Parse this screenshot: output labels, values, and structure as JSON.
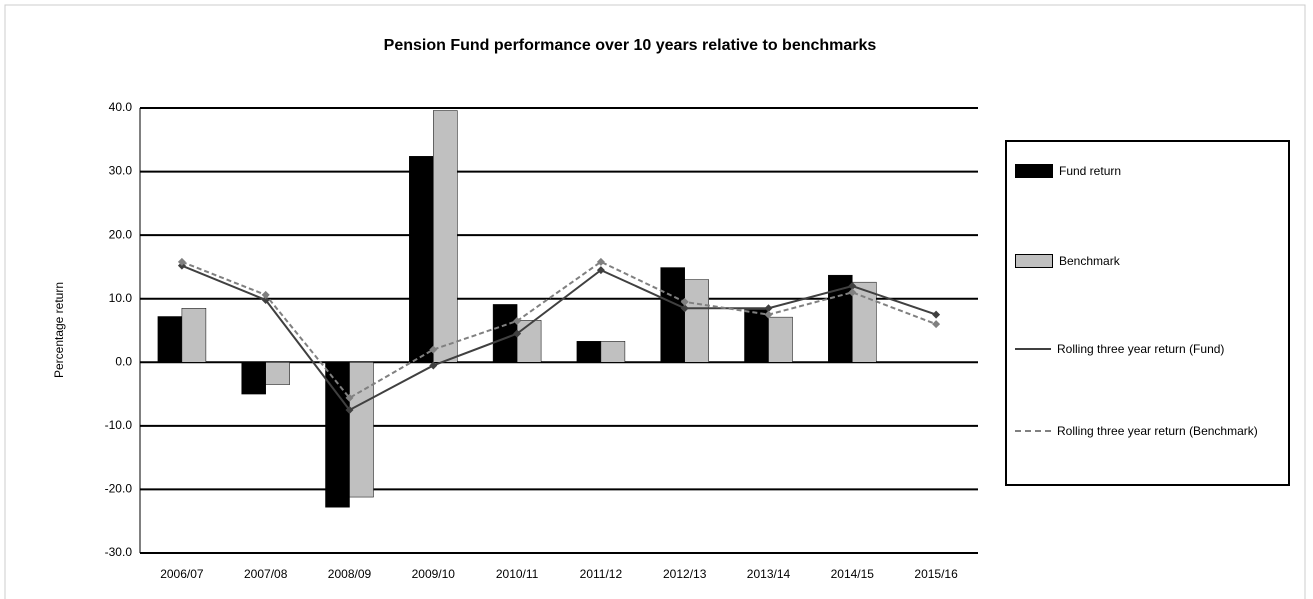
{
  "chart_data": {
    "type": "bar_line",
    "title": "Pension Fund performance over 10 years relative to benchmarks",
    "y_label": "Percentage return",
    "categories": [
      "2006/07",
      "2007/08",
      "2008/09",
      "2009/10",
      "2010/11",
      "2011/12",
      "2012/13",
      "2013/14",
      "2014/15",
      "2015/16"
    ],
    "series": [
      {
        "name": "Fund return",
        "kind": "bar",
        "color": "#000000",
        "values": [
          7.2,
          -5.0,
          -22.8,
          32.4,
          9.1,
          3.3,
          14.9,
          8.3,
          13.7,
          null
        ]
      },
      {
        "name": "Benchmark",
        "kind": "bar",
        "color": "#c0c0c0",
        "values": [
          8.5,
          -3.5,
          -21.2,
          39.6,
          6.6,
          3.3,
          13.0,
          7.1,
          12.6,
          null
        ]
      },
      {
        "name": "Rolling three year return (Fund)",
        "kind": "line",
        "color": "#404040",
        "values": [
          15.2,
          9.8,
          -7.5,
          -0.5,
          4.5,
          14.5,
          8.5,
          8.5,
          12.0,
          7.5
        ]
      },
      {
        "name": "Rolling three year return (Benchmark)",
        "kind": "line",
        "color": "#808080",
        "values": [
          15.8,
          10.6,
          -5.6,
          2.0,
          6.5,
          15.8,
          9.5,
          7.5,
          11.0,
          6.0
        ]
      }
    ],
    "ylim": [
      -30,
      40
    ],
    "yticks": [
      {
        "value": -30,
        "label": "-30.0"
      },
      {
        "value": -20,
        "label": "-20.0"
      },
      {
        "value": -10,
        "label": "-10.0"
      },
      {
        "value": 0,
        "label": "0.0"
      },
      {
        "value": 10,
        "label": "10.0"
      },
      {
        "value": 20,
        "label": "20.0"
      },
      {
        "value": 30,
        "label": "30.0"
      },
      {
        "value": 40,
        "label": "40.0"
      }
    ],
    "grid": true,
    "legend": "right"
  }
}
